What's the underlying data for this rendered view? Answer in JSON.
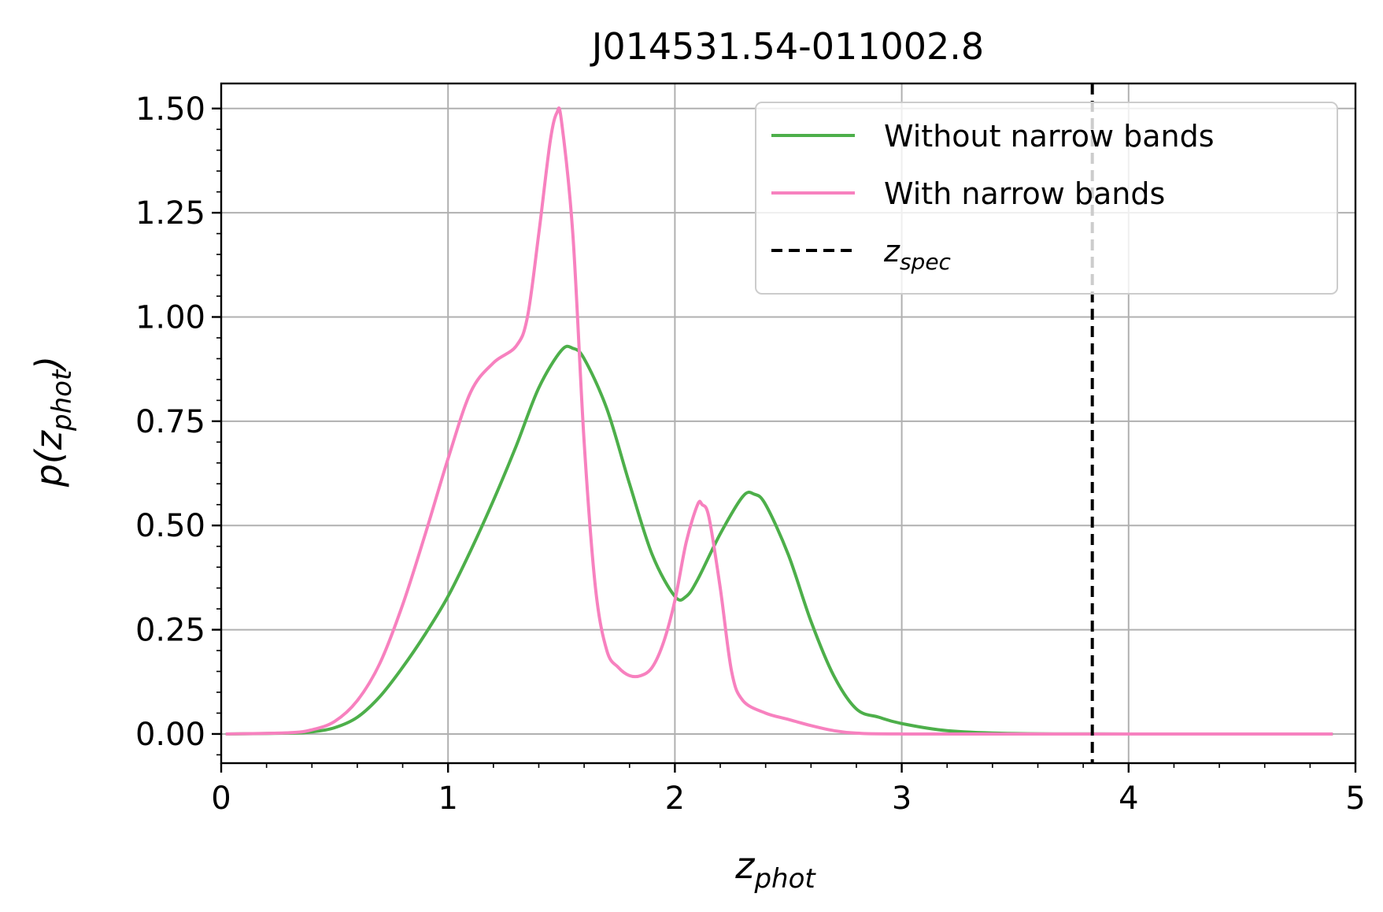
{
  "chart_data": {
    "type": "line",
    "title": "J014531.54-011002.8",
    "xlabel": {
      "main": "z",
      "sub": "phot"
    },
    "ylabel": {
      "pre": "p(",
      "main": "z",
      "sub": "phot",
      "post": ")"
    },
    "xlim": [
      0,
      5
    ],
    "ylim": [
      -0.07,
      1.56
    ],
    "xticks": [
      "0",
      "1",
      "2",
      "3",
      "4",
      "5"
    ],
    "yticks": [
      "0.00",
      "0.25",
      "0.50",
      "0.75",
      "1.00",
      "1.25",
      "1.50"
    ],
    "xtick_values": [
      0,
      1,
      2,
      3,
      4,
      5
    ],
    "ytick_values": [
      0,
      0.25,
      0.5,
      0.75,
      1.0,
      1.25,
      1.5
    ],
    "grid": true,
    "legend_position": "top-right",
    "spec_line": {
      "label": "z",
      "label_sub": "spec",
      "x": 3.84,
      "style": "dashed",
      "color": "#000000"
    },
    "series": [
      {
        "name": "Without narrow bands",
        "color": "#4daf4a",
        "x": [
          0.02,
          0.3,
          0.4,
          0.5,
          0.6,
          0.7,
          0.8,
          0.9,
          1.0,
          1.1,
          1.2,
          1.3,
          1.4,
          1.5,
          1.55,
          1.6,
          1.7,
          1.8,
          1.9,
          2.0,
          2.05,
          2.1,
          2.2,
          2.3,
          2.35,
          2.4,
          2.5,
          2.6,
          2.7,
          2.8,
          2.9,
          3.0,
          3.2,
          3.5,
          4.0,
          4.9
        ],
        "y": [
          0.0,
          0.002,
          0.005,
          0.015,
          0.04,
          0.09,
          0.16,
          0.24,
          0.33,
          0.44,
          0.56,
          0.69,
          0.83,
          0.92,
          0.925,
          0.9,
          0.78,
          0.6,
          0.43,
          0.33,
          0.33,
          0.37,
          0.48,
          0.57,
          0.575,
          0.55,
          0.43,
          0.27,
          0.14,
          0.06,
          0.04,
          0.025,
          0.008,
          0.001,
          0.0,
          0.0
        ]
      },
      {
        "name": "With narrow bands",
        "color": "#f781bf",
        "x": [
          0.02,
          0.3,
          0.4,
          0.5,
          0.6,
          0.7,
          0.8,
          0.9,
          1.0,
          1.1,
          1.2,
          1.3,
          1.35,
          1.4,
          1.45,
          1.48,
          1.5,
          1.55,
          1.6,
          1.65,
          1.7,
          1.75,
          1.8,
          1.85,
          1.9,
          1.95,
          2.0,
          2.05,
          2.1,
          2.12,
          2.15,
          2.2,
          2.25,
          2.3,
          2.4,
          2.5,
          2.6,
          2.7,
          2.8,
          3.0,
          4.0,
          4.9
        ],
        "y": [
          0.0,
          0.003,
          0.01,
          0.03,
          0.08,
          0.17,
          0.31,
          0.48,
          0.66,
          0.82,
          0.89,
          0.93,
          1.0,
          1.2,
          1.42,
          1.49,
          1.47,
          1.2,
          0.7,
          0.35,
          0.2,
          0.16,
          0.14,
          0.14,
          0.16,
          0.22,
          0.32,
          0.46,
          0.55,
          0.55,
          0.52,
          0.35,
          0.15,
          0.08,
          0.05,
          0.035,
          0.02,
          0.008,
          0.002,
          0.0,
          0.0,
          0.0
        ]
      }
    ]
  }
}
